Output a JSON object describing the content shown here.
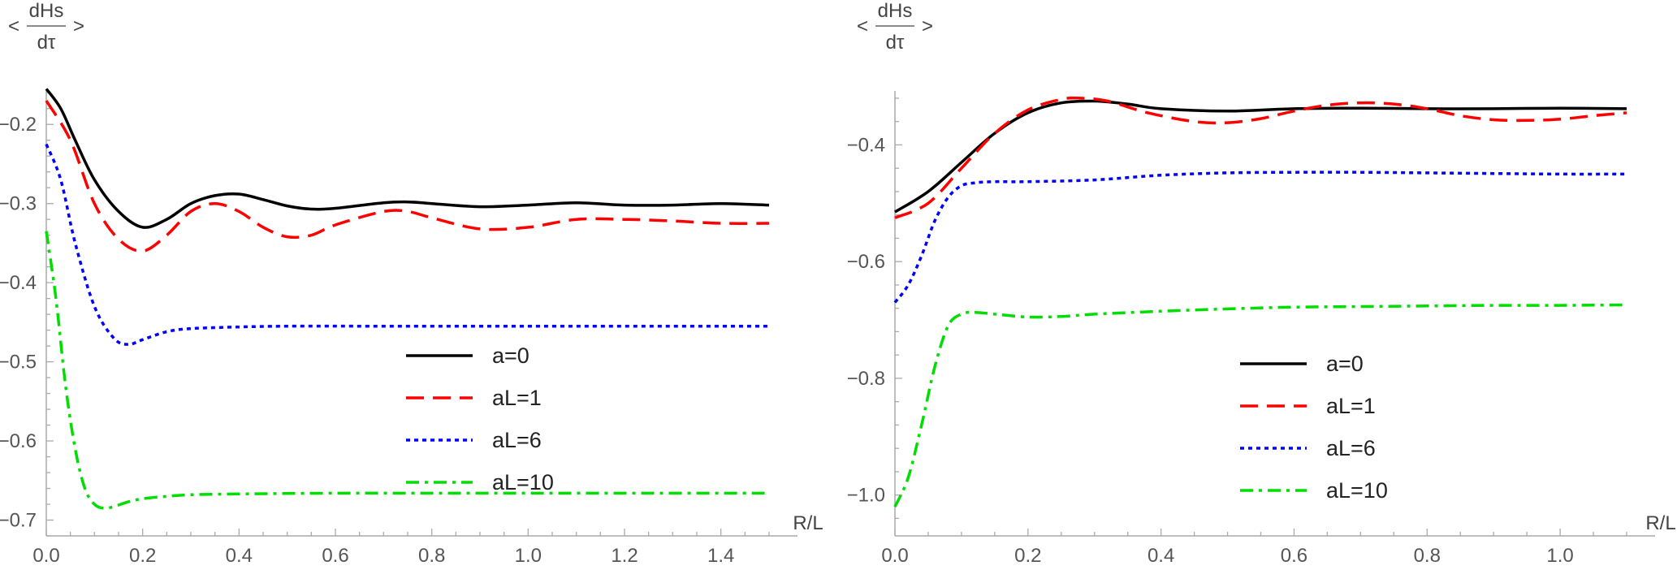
{
  "chart_data": [
    {
      "type": "line",
      "title": "",
      "ylabel": {
        "left": "<",
        "numerator": "dHs",
        "denominator": "dτ",
        "right": ">"
      },
      "xlabel": "R/L",
      "xlim": [
        0,
        1.5
      ],
      "ylim": [
        -0.72,
        -0.13
      ],
      "xticks": [
        0.0,
        0.2,
        0.4,
        0.6,
        0.8,
        1.0,
        1.2,
        1.4
      ],
      "xtick_labels": [
        "0.0",
        "0.2",
        "0.4",
        "0.6",
        "0.8",
        "1.0",
        "1.2",
        "1.4"
      ],
      "yticks": [
        -0.2,
        -0.3,
        -0.4,
        -0.5,
        -0.6,
        -0.7
      ],
      "ytick_labels": [
        "-0.2",
        "-0.3",
        "-0.4",
        "-0.5",
        "-0.6",
        "-0.7"
      ],
      "grid": false,
      "legend_position": "center-right",
      "series": [
        {
          "name": "a=0",
          "color": "#000000",
          "dash": "solid",
          "x": [
            0.0,
            0.03,
            0.06,
            0.1,
            0.15,
            0.2,
            0.25,
            0.3,
            0.35,
            0.4,
            0.45,
            0.5,
            0.55,
            0.6,
            0.7,
            0.75,
            0.8,
            0.9,
            1.0,
            1.1,
            1.2,
            1.3,
            1.4,
            1.5
          ],
          "y": [
            -0.155,
            -0.18,
            -0.22,
            -0.27,
            -0.31,
            -0.33,
            -0.32,
            -0.3,
            -0.29,
            -0.288,
            -0.295,
            -0.303,
            -0.307,
            -0.306,
            -0.299,
            -0.298,
            -0.3,
            -0.304,
            -0.302,
            -0.299,
            -0.302,
            -0.302,
            -0.3,
            -0.302
          ]
        },
        {
          "name": "aL=1",
          "color": "#ff0000",
          "dash": "dashed",
          "x": [
            0.0,
            0.05,
            0.1,
            0.15,
            0.2,
            0.25,
            0.3,
            0.35,
            0.4,
            0.45,
            0.5,
            0.55,
            0.6,
            0.7,
            0.75,
            0.8,
            0.9,
            1.0,
            1.1,
            1.2,
            1.3,
            1.4,
            1.5
          ],
          "y": [
            -0.17,
            -0.22,
            -0.3,
            -0.345,
            -0.36,
            -0.34,
            -0.31,
            -0.3,
            -0.31,
            -0.33,
            -0.342,
            -0.34,
            -0.327,
            -0.31,
            -0.31,
            -0.318,
            -0.332,
            -0.33,
            -0.32,
            -0.32,
            -0.322,
            -0.325,
            -0.325
          ]
        },
        {
          "name": "aL=6",
          "color": "#0000ff",
          "dash": "dotted",
          "x": [
            0.0,
            0.03,
            0.06,
            0.1,
            0.14,
            0.17,
            0.2,
            0.25,
            0.3,
            0.4,
            0.5,
            0.7,
            1.0,
            1.2,
            1.5
          ],
          "y": [
            -0.225,
            -0.27,
            -0.35,
            -0.43,
            -0.47,
            -0.478,
            -0.472,
            -0.462,
            -0.458,
            -0.456,
            -0.455,
            -0.455,
            -0.455,
            -0.455,
            -0.455
          ]
        },
        {
          "name": "aL=10",
          "color": "#00dd00",
          "dash": "dashdot",
          "x": [
            0.0,
            0.02,
            0.04,
            0.06,
            0.08,
            0.1,
            0.12,
            0.14,
            0.17,
            0.2,
            0.25,
            0.3,
            0.4,
            0.6,
            0.8,
            1.0,
            1.2,
            1.5
          ],
          "y": [
            -0.335,
            -0.42,
            -0.53,
            -0.61,
            -0.66,
            -0.68,
            -0.685,
            -0.683,
            -0.677,
            -0.673,
            -0.67,
            -0.668,
            -0.667,
            -0.666,
            -0.666,
            -0.666,
            -0.666,
            -0.666
          ]
        }
      ]
    },
    {
      "type": "line",
      "title": "",
      "ylabel": {
        "left": "<",
        "numerator": "dHs",
        "denominator": "dτ",
        "right": ">"
      },
      "xlabel": "R/L",
      "xlim": [
        0,
        1.1
      ],
      "ylim": [
        -1.07,
        -0.27
      ],
      "xticks": [
        0.0,
        0.2,
        0.4,
        0.6,
        0.8,
        1.0
      ],
      "xtick_labels": [
        "0.0",
        "0.2",
        "0.4",
        "0.6",
        "0.8",
        "1.0"
      ],
      "yticks": [
        -0.4,
        -0.6,
        -0.8,
        -1.0
      ],
      "ytick_labels": [
        "-0.4",
        "-0.6",
        "-0.8",
        "-1.0"
      ],
      "grid": false,
      "legend_position": "lower-right",
      "series": [
        {
          "name": "a=0",
          "color": "#000000",
          "dash": "solid",
          "x": [
            0.0,
            0.05,
            0.1,
            0.15,
            0.2,
            0.25,
            0.3,
            0.35,
            0.4,
            0.5,
            0.6,
            0.7,
            0.8,
            0.9,
            1.0,
            1.1
          ],
          "y": [
            -0.515,
            -0.48,
            -0.43,
            -0.38,
            -0.345,
            -0.328,
            -0.325,
            -0.33,
            -0.338,
            -0.342,
            -0.338,
            -0.337,
            -0.338,
            -0.338,
            -0.337,
            -0.338
          ]
        },
        {
          "name": "aL=1",
          "color": "#ff0000",
          "dash": "dashed",
          "x": [
            0.0,
            0.05,
            0.1,
            0.15,
            0.2,
            0.25,
            0.28,
            0.32,
            0.38,
            0.45,
            0.5,
            0.55,
            0.6,
            0.65,
            0.7,
            0.75,
            0.8,
            0.85,
            0.9,
            0.95,
            1.0,
            1.05,
            1.1
          ],
          "y": [
            -0.525,
            -0.5,
            -0.44,
            -0.38,
            -0.34,
            -0.322,
            -0.32,
            -0.325,
            -0.345,
            -0.36,
            -0.362,
            -0.355,
            -0.342,
            -0.332,
            -0.328,
            -0.33,
            -0.338,
            -0.35,
            -0.357,
            -0.358,
            -0.356,
            -0.35,
            -0.345
          ]
        },
        {
          "name": "aL=6",
          "color": "#0000ff",
          "dash": "dotted",
          "x": [
            0.0,
            0.02,
            0.04,
            0.06,
            0.08,
            0.1,
            0.12,
            0.15,
            0.2,
            0.3,
            0.4,
            0.5,
            0.6,
            0.7,
            0.8,
            0.9,
            1.0,
            1.1
          ],
          "y": [
            -0.67,
            -0.64,
            -0.59,
            -0.53,
            -0.49,
            -0.47,
            -0.465,
            -0.463,
            -0.463,
            -0.46,
            -0.452,
            -0.448,
            -0.447,
            -0.447,
            -0.448,
            -0.449,
            -0.45,
            -0.45
          ]
        },
        {
          "name": "aL=10",
          "color": "#00dd00",
          "dash": "dashdot",
          "x": [
            0.0,
            0.02,
            0.04,
            0.06,
            0.08,
            0.1,
            0.12,
            0.15,
            0.2,
            0.25,
            0.3,
            0.4,
            0.5,
            0.6,
            0.7,
            0.8,
            0.9,
            1.0,
            1.1
          ],
          "y": [
            -1.02,
            -0.97,
            -0.88,
            -0.78,
            -0.71,
            -0.69,
            -0.687,
            -0.69,
            -0.695,
            -0.694,
            -0.69,
            -0.685,
            -0.681,
            -0.678,
            -0.677,
            -0.676,
            -0.675,
            -0.675,
            -0.674
          ]
        }
      ]
    }
  ]
}
